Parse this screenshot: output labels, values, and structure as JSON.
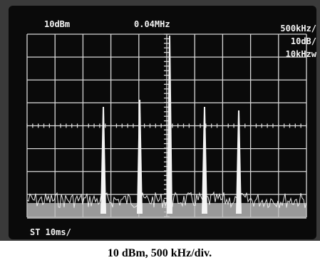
{
  "screen": {
    "top_left": "10dBm",
    "top_center": "0.04MHz",
    "top_right": [
      "500kHz/",
      "10dB/",
      "10kHzw"
    ],
    "bottom_left": "ST 10ms/"
  },
  "caption": "10 dBm, 500 kHz/div."
}
